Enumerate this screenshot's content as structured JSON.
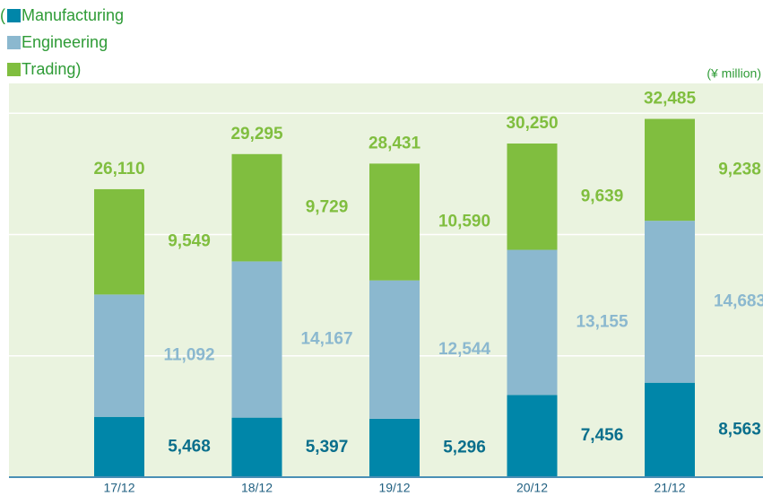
{
  "chart_data": {
    "type": "stacked_bar",
    "legend_prefix": "(",
    "legend_suffix": ")",
    "unit_label": "(¥ million)",
    "categories": [
      "17/12",
      "18/12",
      "19/12",
      "20/12",
      "21/12"
    ],
    "series": [
      {
        "name": "Manufacturing",
        "color": "#0086a9",
        "label_color": "#0a6f8c",
        "values": [
          5468,
          5397,
          5296,
          7456,
          8563
        ],
        "value_labels": [
          "5,468",
          "5,397",
          "5,296",
          "7,456",
          "8,563"
        ]
      },
      {
        "name": "Engineering",
        "color": "#8bb8cf",
        "label_color": "#8bb8cf",
        "values": [
          11092,
          14167,
          12544,
          13155,
          14683
        ],
        "value_labels": [
          "11,092",
          "14,167",
          "12,544",
          "13,155",
          "14,683"
        ]
      },
      {
        "name": "Trading",
        "color": "#80be3f",
        "label_color": "#80be3f",
        "values": [
          9549,
          9729,
          10590,
          9639,
          9238
        ],
        "value_labels": [
          "9,549",
          "9,729",
          "10,590",
          "9,639",
          "9,238"
        ]
      }
    ],
    "totals": [
      26110,
      29295,
      28431,
      30250,
      32485
    ],
    "total_labels": [
      "26,110",
      "29,295",
      "28,431",
      "30,250",
      "32,485"
    ],
    "total_color": "#80be3f",
    "ylim": [
      0,
      35700
    ],
    "yticks": [
      0,
      11000,
      22000,
      33000
    ],
    "grid": true
  }
}
